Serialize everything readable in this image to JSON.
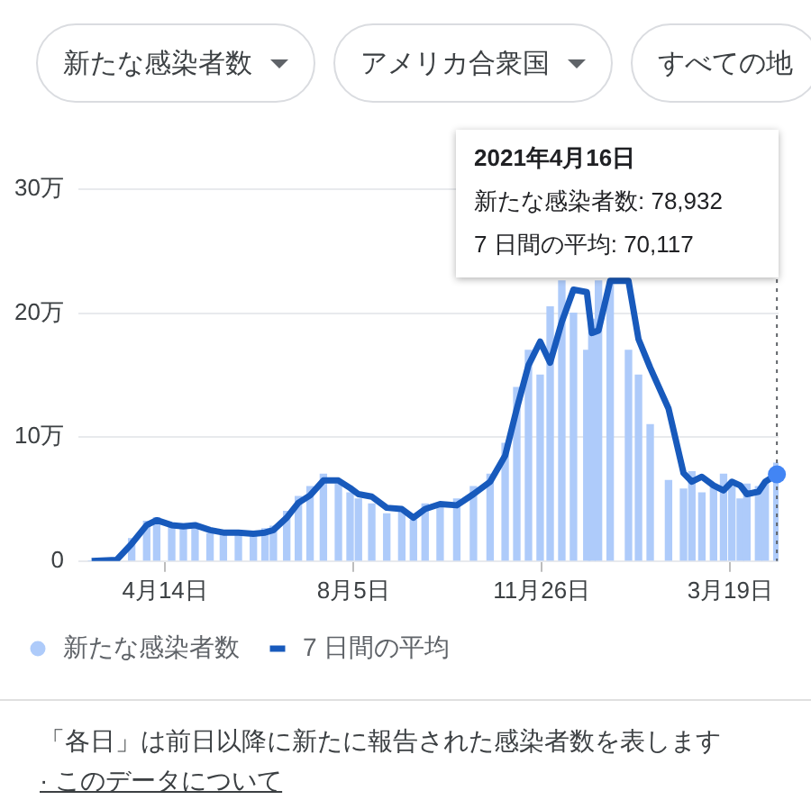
{
  "chart_data": {
    "type": "bar",
    "x": [
      "2020-03-01",
      "2020-03-16",
      "2020-03-25",
      "2020-04-03",
      "2020-04-09",
      "2020-04-18",
      "2020-04-25",
      "2020-05-02",
      "2020-05-11",
      "2020-05-19",
      "2020-05-28",
      "2020-06-06",
      "2020-06-13",
      "2020-06-18",
      "2020-06-26",
      "2020-07-03",
      "2020-07-10",
      "2020-07-18",
      "2020-07-27",
      "2020-08-03",
      "2020-08-08",
      "2020-08-16",
      "2020-08-25",
      "2020-09-03",
      "2020-09-10",
      "2020-09-17",
      "2020-09-26",
      "2020-10-06",
      "2020-10-16",
      "2020-10-26",
      "2020-11-04",
      "2020-11-11",
      "2020-11-18",
      "2020-11-25",
      "2020-12-01",
      "2020-12-08",
      "2020-12-15",
      "2020-12-23",
      "2020-12-26",
      "2020-12-30",
      "2021-01-06",
      "2021-01-17",
      "2021-01-23",
      "2021-01-30",
      "2021-02-10",
      "2021-02-19",
      "2021-02-24",
      "2021-03-02",
      "2021-03-09",
      "2021-03-15",
      "2021-03-20",
      "2021-03-25",
      "2021-03-29",
      "2021-04-05",
      "2021-04-09",
      "2021-04-16"
    ],
    "series": [
      {
        "name": "新たな感染者数",
        "color": "#aecbfa",
        "values": [
          0,
          null,
          1.8,
          3.2,
          3.5,
          2.7,
          3,
          2.6,
          2.2,
          2.4,
          2.1,
          2,
          2.6,
          2.8,
          4,
          5.2,
          6,
          7,
          6.2,
          5.5,
          5,
          4.6,
          3.8,
          4,
          3.3,
          4.6,
          4.4,
          5,
          6,
          7,
          9.5,
          14,
          17,
          15,
          20.5,
          22.6,
          20,
          17,
          19.5,
          22.6,
          22.5,
          17,
          15,
          11,
          6.5,
          5.8,
          7.2,
          5.5,
          6.2,
          7,
          6,
          5,
          6.2,
          6,
          6.2,
          7.9
        ]
      },
      {
        "name": "7 日間の平均",
        "type": "line",
        "color": "#185abc",
        "values": [
          0,
          0.1,
          1.4,
          2.9,
          3.3,
          2.9,
          2.8,
          2.9,
          2.5,
          2.3,
          2.3,
          2.2,
          2.3,
          2.5,
          3.5,
          4.7,
          5.3,
          6.5,
          6.5,
          5.9,
          5.4,
          5.2,
          4.3,
          4.2,
          3.5,
          4.2,
          4.6,
          4.5,
          5.4,
          6.4,
          8.5,
          12.3,
          15.8,
          17.7,
          16,
          19.3,
          21.9,
          21.7,
          18.4,
          18.6,
          22.6,
          22.6,
          17.9,
          15.6,
          12.3,
          7.1,
          6.4,
          6.8,
          6.1,
          5.7,
          6.4,
          6.1,
          5.4,
          5.6,
          6.4,
          7
        ]
      }
    ],
    "xlim": [
      "2020-02-22",
      "2021-04-17"
    ],
    "xticks": [
      {
        "value": "2020-04-14",
        "label": "4月14日"
      },
      {
        "value": "2020-08-05",
        "label": "8月5日"
      },
      {
        "value": "2020-11-26",
        "label": "11月26日"
      },
      {
        "value": "2021-03-19",
        "label": "3月19日"
      }
    ],
    "ylim": [
      0,
      30
    ],
    "yticks": [
      0,
      {
        "value": 10,
        "label": "10万"
      },
      {
        "value": 20,
        "label": "20万"
      },
      {
        "value": 30,
        "label": "30万"
      }
    ],
    "grid": "y",
    "legend": "bottom left",
    "ref_lines": [
      {
        "axis": "x",
        "value": "2021-04-16",
        "line_style": "dotted",
        "color": "#5f6368"
      }
    ],
    "annotations": [
      "新たな感染者数",
      "アメリカ合衆国",
      "すべての地",
      "2021年4月16日",
      "新たな感染者数: 78,932",
      "7 日間の平均: 70,117",
      "「各日」は前日以降に新たに報告された感染者数を表します",
      "· このデータについて"
    ]
  }
}
